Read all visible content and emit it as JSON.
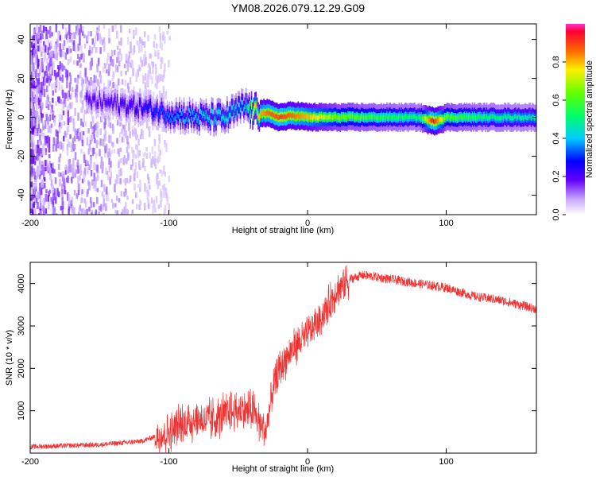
{
  "title": "YM08.2026.079.12.29.G09",
  "colors": {
    "snr_line": "#ee3333",
    "axes": "#000000"
  },
  "chart_data": [
    {
      "type": "heatmap",
      "xlabel": "Height of straight line (km)",
      "ylabel": "Frequency (Hz)",
      "xlim": [
        -200,
        165
      ],
      "ylim": [
        -50,
        48
      ],
      "xticks": [
        "-200",
        "-100",
        "0",
        "100"
      ],
      "xtick_values": [
        -200,
        -100,
        0,
        100
      ],
      "yticks": [
        "-40",
        "-20",
        "0",
        "20",
        "40"
      ],
      "ytick_values": [
        -40,
        -20,
        0,
        20,
        40
      ],
      "colorbar": {
        "label": "Normalized spectral amplitude",
        "range": [
          0.0,
          1.0
        ],
        "ticks": [
          "0.0",
          "0.2",
          "0.4",
          "0.6",
          "0.8"
        ],
        "tick_values": [
          0.0,
          0.2,
          0.4,
          0.6,
          0.8
        ]
      },
      "ridge": {
        "x": [
          -150,
          -120,
          -100,
          -80,
          -60,
          -45,
          -40,
          -30,
          -20,
          -10,
          0,
          20,
          50,
          80,
          90,
          100,
          130,
          165
        ],
        "frequency": [
          8,
          5,
          2,
          0,
          0,
          6,
          3,
          2,
          0,
          1,
          0,
          0,
          0,
          0,
          -2,
          0,
          0,
          0
        ],
        "amplitude": [
          0.2,
          0.25,
          0.35,
          0.4,
          0.45,
          0.4,
          0.75,
          0.85,
          0.9,
          0.85,
          0.8,
          0.65,
          0.55,
          0.5,
          0.95,
          0.6,
          0.5,
          0.45
        ]
      }
    },
    {
      "type": "line",
      "xlabel": "Height of straight line (km)",
      "ylabel": "SNR (10 * v/v)",
      "xlim": [
        -200,
        165
      ],
      "ylim": [
        0,
        4500
      ],
      "xticks": [
        "-200",
        "-100",
        "0",
        "100"
      ],
      "xtick_values": [
        -200,
        -100,
        0,
        100
      ],
      "yticks": [
        "1000",
        "2000",
        "3000",
        "4000"
      ],
      "ytick_values": [
        1000,
        2000,
        3000,
        4000
      ],
      "trend": {
        "x": [
          -200,
          -150,
          -120,
          -100,
          -90,
          -80,
          -70,
          -60,
          -50,
          -40,
          -30,
          -25,
          -20,
          -10,
          0,
          10,
          20,
          30,
          40,
          60,
          80,
          100,
          120,
          140,
          165
        ],
        "snr": [
          150,
          200,
          280,
          500,
          700,
          800,
          750,
          900,
          1000,
          1000,
          500,
          1500,
          2000,
          2500,
          2800,
          3200,
          3800,
          4100,
          4200,
          4100,
          4000,
          3900,
          3700,
          3600,
          3400
        ]
      }
    }
  ]
}
